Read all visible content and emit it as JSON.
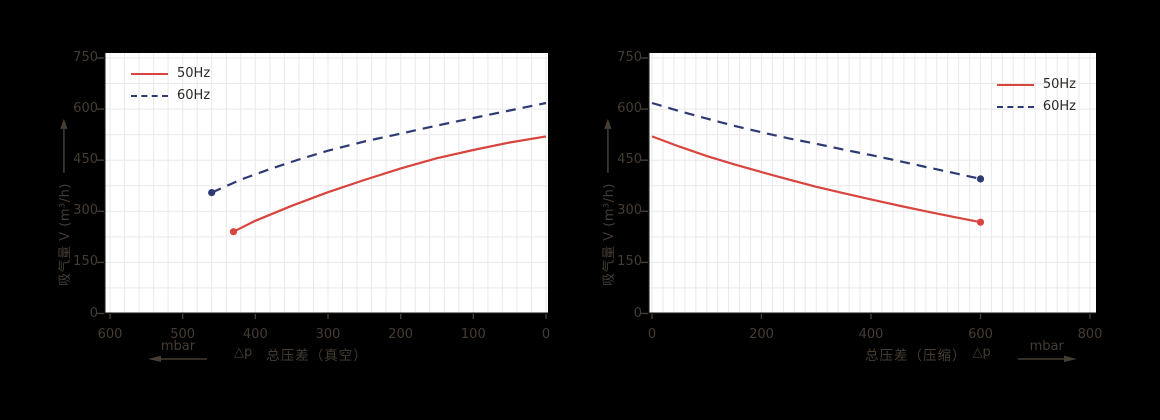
{
  "page": {
    "background": "#000000",
    "text_color": "#453c33",
    "plot_background": "#ffffff"
  },
  "chart_data": [
    {
      "type": "line",
      "id": "vacuum-curve",
      "ylabel": "吸气量 V (m³/h)",
      "xlabel": "总压差（真空）",
      "delta_label": "△p",
      "xunit": "mbar",
      "xunit_arrow": "left",
      "x_direction": "reversed",
      "xlim": [
        600,
        0
      ],
      "ylim": [
        0,
        750
      ],
      "x_ticks": [
        600,
        500,
        400,
        300,
        200,
        100,
        0
      ],
      "y_ticks": [
        750,
        600,
        450,
        300,
        150,
        0
      ],
      "grid": {
        "x_step": 20,
        "y_step": 75,
        "color": "#e9e9e9",
        "on": true
      },
      "legend": {
        "position": "top-left",
        "items": [
          {
            "label": "50Hz",
            "style": "solid",
            "color": "#d8453e"
          },
          {
            "label": "60Hz",
            "style": "dashed",
            "color": "#2d3a73"
          }
        ]
      },
      "series": [
        {
          "name": "50Hz",
          "color": "#d8453e",
          "style": "solid",
          "marker": "start",
          "points": [
            [
              430,
              240
            ],
            [
              400,
              272
            ],
            [
              350,
              316
            ],
            [
              300,
              356
            ],
            [
              250,
              392
            ],
            [
              200,
              426
            ],
            [
              150,
              456
            ],
            [
              100,
              480
            ],
            [
              50,
              502
            ],
            [
              0,
              520
            ]
          ]
        },
        {
          "name": "60Hz",
          "color": "#2d3a73",
          "style": "dashed",
          "marker": "start",
          "points": [
            [
              460,
              355
            ],
            [
              420,
              393
            ],
            [
              380,
              424
            ],
            [
              340,
              452
            ],
            [
              300,
              478
            ],
            [
              250,
              505
            ],
            [
              200,
              528
            ],
            [
              150,
              552
            ],
            [
              100,
              574
            ],
            [
              50,
              596
            ],
            [
              0,
              618
            ]
          ]
        }
      ]
    },
    {
      "type": "line",
      "id": "compression-curve",
      "ylabel": "吸气量 V (m³/h)",
      "xlabel": "总压差（压缩）",
      "delta_label": "△p",
      "xunit": "mbar",
      "xunit_arrow": "right",
      "x_direction": "normal",
      "xlim": [
        0,
        800
      ],
      "ylim": [
        0,
        750
      ],
      "x_ticks": [
        0,
        200,
        400,
        600,
        800
      ],
      "y_ticks": [
        750,
        600,
        450,
        300,
        150,
        0
      ],
      "grid": {
        "x_step": 20,
        "y_step": 75,
        "color": "#e9e9e9",
        "on": true
      },
      "legend": {
        "position": "top-right",
        "items": [
          {
            "label": "50Hz",
            "style": "solid",
            "color": "#d8453e"
          },
          {
            "label": "60Hz",
            "style": "dashed",
            "color": "#2d3a73"
          }
        ]
      },
      "series": [
        {
          "name": "50Hz",
          "color": "#d8453e",
          "style": "solid",
          "marker": "end",
          "points": [
            [
              0,
              520
            ],
            [
              50,
              490
            ],
            [
              100,
              462
            ],
            [
              150,
              438
            ],
            [
              200,
              415
            ],
            [
              250,
              393
            ],
            [
              300,
              372
            ],
            [
              350,
              353
            ],
            [
              400,
              335
            ],
            [
              450,
              317
            ],
            [
              500,
              300
            ],
            [
              550,
              284
            ],
            [
              600,
              268
            ]
          ]
        },
        {
          "name": "60Hz",
          "color": "#2d3a73",
          "style": "dashed",
          "marker": "end",
          "points": [
            [
              0,
              618
            ],
            [
              50,
              594
            ],
            [
              100,
              572
            ],
            [
              150,
              551
            ],
            [
              200,
              532
            ],
            [
              250,
              514
            ],
            [
              300,
              498
            ],
            [
              350,
              481
            ],
            [
              400,
              465
            ],
            [
              450,
              448
            ],
            [
              500,
              430
            ],
            [
              550,
              413
            ],
            [
              600,
              395
            ]
          ]
        }
      ]
    }
  ]
}
